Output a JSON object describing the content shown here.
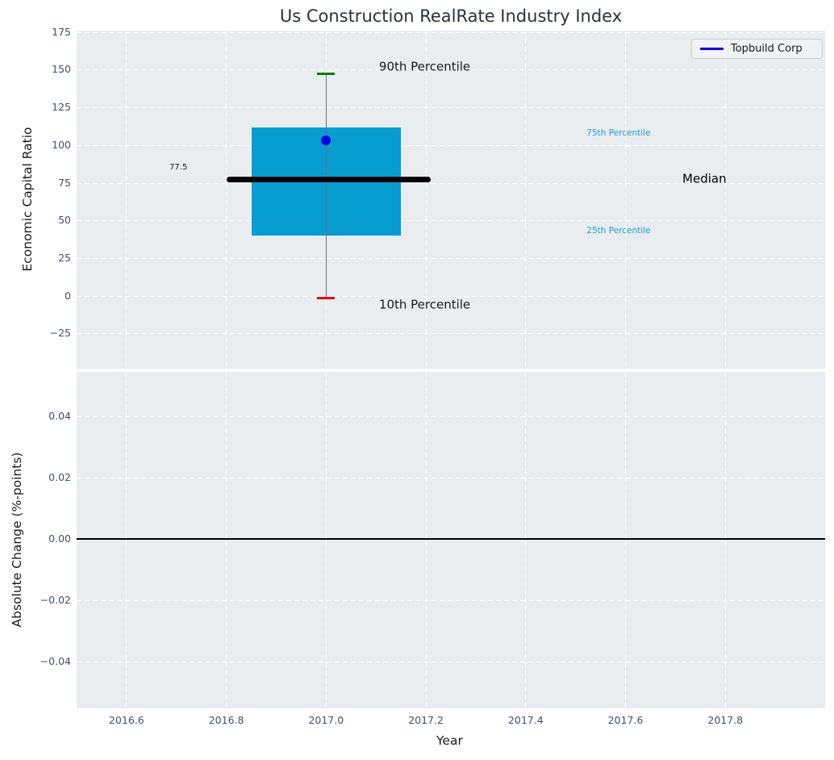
{
  "chart_data": {
    "type": "boxplot",
    "title": "Us Construction RealRate Industry Index",
    "xlabel": "Year",
    "xlim": [
      2016.5,
      2018.0
    ],
    "xticks": {
      "values": [
        2016.6,
        2016.8,
        2017.0,
        2017.2,
        2017.4,
        2017.6,
        2017.8
      ],
      "labels": [
        "2016.6",
        "2016.8",
        "2017.0",
        "2017.2",
        "2017.4",
        "2017.6",
        "2017.8"
      ]
    },
    "legend": {
      "label": "Topbuild Corp",
      "position": "upper right"
    },
    "grid": true,
    "subplots": [
      {
        "ylabel": "Economic Capital Ratio",
        "ylim": [
          -48,
          176.1
        ],
        "yticks": {
          "values": [
            175,
            150,
            125,
            100,
            75,
            50,
            25,
            0,
            -25
          ],
          "labels": [
            "175",
            "150",
            "125",
            "100",
            "75",
            "50",
            "25",
            "0",
            "−25"
          ]
        },
        "box": {
          "x": 2017.0,
          "p10": -1,
          "p25": 40,
          "median": 77.5,
          "p75": 112,
          "p90": 147.5,
          "company_point": {
            "name": "Topbuild Corp",
            "x": 2017.0,
            "y": 103.5
          },
          "box_x_range": [
            2016.85,
            2017.15
          ],
          "median_x_range": [
            2016.8,
            2017.21
          ]
        },
        "annotations": [
          {
            "text": "90th Percentile",
            "x": 2017.106,
            "y": 152.0,
            "size": 15,
            "color": "#1a1a1a"
          },
          {
            "text": "75th Percentile",
            "x": 2017.522,
            "y": 108.4,
            "size": 10.5,
            "color": "#1f9ed2"
          },
          {
            "text": "Median",
            "x": 2017.714,
            "y": 77.9,
            "size": 15,
            "color": "#000000"
          },
          {
            "text": "25th Percentile",
            "x": 2017.522,
            "y": 43.7,
            "size": 10.5,
            "color": "#1f9ed2"
          },
          {
            "text": "10th Percentile",
            "x": 2017.106,
            "y": -5.5,
            "size": 15,
            "color": "#1a1a1a"
          },
          {
            "text": "77.5",
            "x": 2016.686,
            "y": 85.4,
            "size": 10,
            "color": "#1a1a1a"
          }
        ]
      },
      {
        "ylabel": "Absolute Change (%-points)",
        "ylim": [
          -0.0552,
          0.0546
        ],
        "yticks": {
          "values": [
            0.04,
            0.02,
            0.0,
            -0.02,
            -0.04
          ],
          "labels": [
            "0.04",
            "0.02",
            "0.00",
            "−0.02",
            "−0.04"
          ]
        },
        "zero_line_y": 0.0
      }
    ]
  },
  "colors": {
    "figure_bg": "#ffffff",
    "axes_bg": "#e9edf0",
    "grid": "#ffffff",
    "tick_label": "#42516d",
    "axis_label": "#1a1a1a",
    "title": "#2e313c",
    "box_fill": "#089dd1",
    "whisker": "#707070",
    "cap_top": "#008000",
    "cap_bottom": "#e8000b",
    "median_line": "#000000",
    "company_marker": "#0000e0",
    "legend_line": "#0000e0",
    "zero_line": "#000000",
    "legend_bg": "#f1f2f6",
    "legend_border": "#cccccc"
  }
}
